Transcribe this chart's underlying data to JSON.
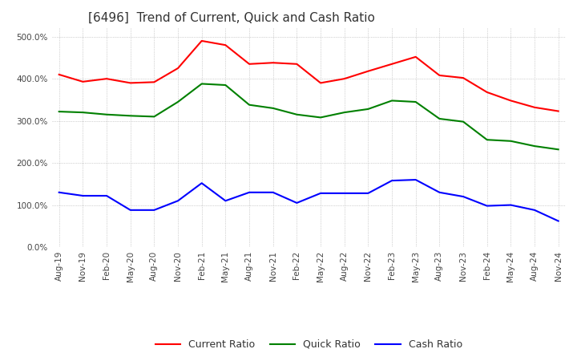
{
  "title": "[6496]  Trend of Current, Quick and Cash Ratio",
  "title_fontsize": 11,
  "background_color": "#ffffff",
  "grid_color": "#aaaaaa",
  "xlabels": [
    "Aug-19",
    "Nov-19",
    "Feb-20",
    "May-20",
    "Aug-20",
    "Nov-20",
    "Feb-21",
    "May-21",
    "Aug-21",
    "Nov-21",
    "Feb-22",
    "May-22",
    "Aug-22",
    "Nov-22",
    "Feb-23",
    "May-23",
    "Aug-23",
    "Nov-23",
    "Feb-24",
    "May-24",
    "Aug-24",
    "Nov-24"
  ],
  "current_ratio": [
    410,
    393,
    400,
    390,
    392,
    425,
    490,
    480,
    435,
    438,
    435,
    390,
    400,
    418,
    435,
    452,
    408,
    402,
    368,
    348,
    332,
    323
  ],
  "quick_ratio": [
    322,
    320,
    315,
    312,
    310,
    345,
    388,
    385,
    338,
    330,
    315,
    308,
    320,
    328,
    348,
    345,
    305,
    298,
    255,
    252,
    240,
    232
  ],
  "cash_ratio": [
    130,
    122,
    122,
    88,
    88,
    110,
    152,
    110,
    130,
    130,
    105,
    128,
    128,
    128,
    158,
    160,
    130,
    120,
    98,
    100,
    88,
    62
  ],
  "current_color": "#ff0000",
  "quick_color": "#008000",
  "cash_color": "#0000ff",
  "ylim": [
    0,
    520
  ],
  "yticks": [
    0,
    100,
    200,
    300,
    400,
    500
  ]
}
